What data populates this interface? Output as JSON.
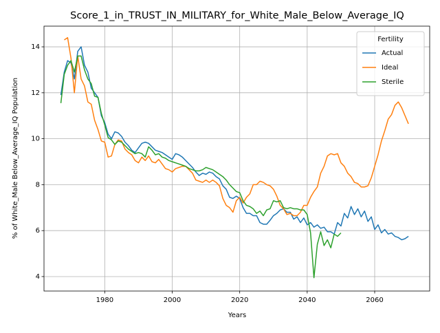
{
  "chart_data": {
    "type": "line",
    "title": "Score_1_in_TRUST_IN_MILITARY_for_White_Male_Below_Average_IQ",
    "xlabel": "Years",
    "ylabel": "% of White_Male Below_Average_IQ Population",
    "x": [
      1967,
      1968,
      1969,
      1970,
      1971,
      1972,
      1973,
      1974,
      1975,
      1976,
      1977,
      1978,
      1979,
      1980,
      1981,
      1982,
      1983,
      1984,
      1985,
      1986,
      1987,
      1988,
      1989,
      1990,
      1991,
      1992,
      1993,
      1994,
      1995,
      1996,
      1997,
      1998,
      1999,
      2000,
      2001,
      2002,
      2003,
      2004,
      2005,
      2006,
      2007,
      2008,
      2009,
      2010,
      2011,
      2012,
      2013,
      2014,
      2015,
      2016,
      2017,
      2018,
      2019,
      2020,
      2021,
      2022,
      2023,
      2024,
      2025,
      2026,
      2027,
      2028,
      2029,
      2030,
      2031,
      2032,
      2033,
      2034,
      2035,
      2036,
      2037,
      2038,
      2039,
      2040,
      2041,
      2042,
      2043,
      2044,
      2045,
      2046,
      2047,
      2048,
      2049,
      2050,
      2051,
      2052,
      2053,
      2054,
      2055,
      2056,
      2057,
      2058,
      2059,
      2060,
      2061,
      2062,
      2063,
      2064,
      2065,
      2066,
      2067,
      2068,
      2069,
      2070
    ],
    "series": [
      {
        "name": "Actual",
        "color": "#1f77b4",
        "values": [
          11.9,
          12.9,
          13.4,
          13.3,
          12.6,
          13.8,
          14.0,
          13.2,
          12.9,
          12.2,
          12.0,
          11.8,
          11.0,
          10.7,
          10.2,
          10.0,
          10.3,
          10.25,
          10.1,
          9.85,
          9.7,
          9.5,
          9.4,
          9.6,
          9.8,
          9.85,
          9.8,
          9.65,
          9.5,
          9.45,
          9.4,
          9.3,
          9.2,
          9.1,
          9.35,
          9.3,
          9.2,
          9.05,
          8.9,
          8.75,
          8.55,
          8.4,
          8.5,
          8.45,
          8.55,
          8.5,
          8.35,
          8.25,
          7.95,
          7.8,
          7.45,
          7.4,
          7.5,
          7.4,
          7.0,
          6.75,
          6.75,
          6.65,
          6.65,
          6.35,
          6.28,
          6.28,
          6.45,
          6.65,
          6.75,
          6.9,
          6.95,
          6.8,
          6.8,
          6.5,
          6.6,
          6.35,
          6.55,
          6.25,
          6.35,
          6.15,
          6.25,
          6.1,
          6.15,
          5.95,
          5.95,
          5.85,
          6.35,
          6.2,
          6.75,
          6.55,
          7.05,
          6.7,
          6.95,
          6.6,
          6.85,
          6.4,
          6.6,
          6.05,
          6.25,
          5.9,
          6.05,
          5.85,
          5.9,
          5.75,
          5.7,
          5.6,
          5.65,
          5.75
        ]
      },
      {
        "name": "Ideal",
        "color": "#ff7f0e",
        "values": [
          null,
          14.3,
          14.4,
          13.5,
          12.0,
          13.6,
          12.6,
          12.3,
          11.6,
          11.5,
          10.8,
          10.4,
          9.9,
          9.85,
          9.2,
          9.25,
          9.75,
          9.95,
          9.9,
          9.55,
          9.4,
          9.3,
          9.05,
          8.95,
          9.2,
          9.05,
          9.25,
          9.0,
          8.95,
          9.1,
          8.9,
          8.7,
          8.65,
          8.55,
          8.7,
          8.75,
          8.8,
          8.8,
          8.65,
          8.5,
          8.2,
          8.15,
          8.1,
          8.2,
          8.1,
          8.2,
          8.1,
          7.95,
          7.4,
          7.1,
          7.0,
          6.8,
          7.3,
          7.45,
          7.2,
          7.45,
          7.6,
          8.0,
          8.0,
          8.15,
          8.1,
          8.0,
          7.95,
          7.8,
          7.5,
          7.1,
          6.95,
          6.7,
          6.75,
          6.65,
          6.65,
          6.8,
          7.1,
          7.1,
          7.45,
          7.7,
          7.9,
          8.5,
          8.8,
          9.25,
          9.35,
          9.3,
          9.35,
          8.95,
          8.8,
          8.5,
          8.35,
          8.1,
          8.05,
          7.9,
          7.9,
          7.95,
          8.3,
          8.8,
          9.3,
          9.9,
          10.35,
          10.85,
          11.05,
          11.45,
          11.6,
          11.35,
          11.0,
          10.65
        ]
      },
      {
        "name": "Sterile",
        "color": "#2ca02c",
        "values": [
          11.55,
          12.8,
          13.2,
          13.4,
          12.9,
          13.6,
          13.6,
          13.0,
          12.6,
          12.4,
          11.85,
          11.8,
          11.1,
          10.6,
          10.05,
          9.95,
          9.75,
          9.9,
          9.85,
          9.7,
          9.55,
          9.45,
          9.35,
          9.4,
          9.35,
          9.2,
          9.65,
          9.5,
          9.3,
          9.35,
          9.2,
          9.15,
          9.05,
          9.0,
          8.95,
          8.9,
          8.85,
          8.8,
          8.7,
          8.65,
          8.6,
          8.6,
          8.65,
          8.75,
          8.7,
          8.65,
          8.55,
          8.45,
          8.35,
          8.2,
          8.0,
          7.85,
          7.7,
          7.65,
          7.3,
          7.1,
          7.05,
          6.95,
          6.75,
          6.85,
          6.65,
          6.9,
          6.95,
          7.3,
          7.25,
          7.3,
          7.0,
          6.95,
          7.0,
          6.95,
          6.95,
          6.9,
          6.9,
          6.7,
          5.9,
          3.95,
          5.4,
          5.95,
          5.35,
          5.6,
          5.25,
          5.85,
          5.75,
          5.9,
          null,
          null,
          null,
          null,
          null,
          null,
          null,
          null,
          null,
          null,
          null,
          null,
          null,
          null,
          null,
          null,
          null,
          null,
          null,
          null
        ]
      }
    ],
    "xlim": [
      1962,
      2076.3
    ],
    "ylim": [
      3.37,
      14.9
    ],
    "xticks": [
      1980,
      2000,
      2020,
      2040,
      2060
    ],
    "yticks": [
      4,
      6,
      8,
      10,
      12,
      14
    ],
    "grid": true,
    "legend": {
      "title": "Fertility",
      "loc": "upper right"
    }
  }
}
